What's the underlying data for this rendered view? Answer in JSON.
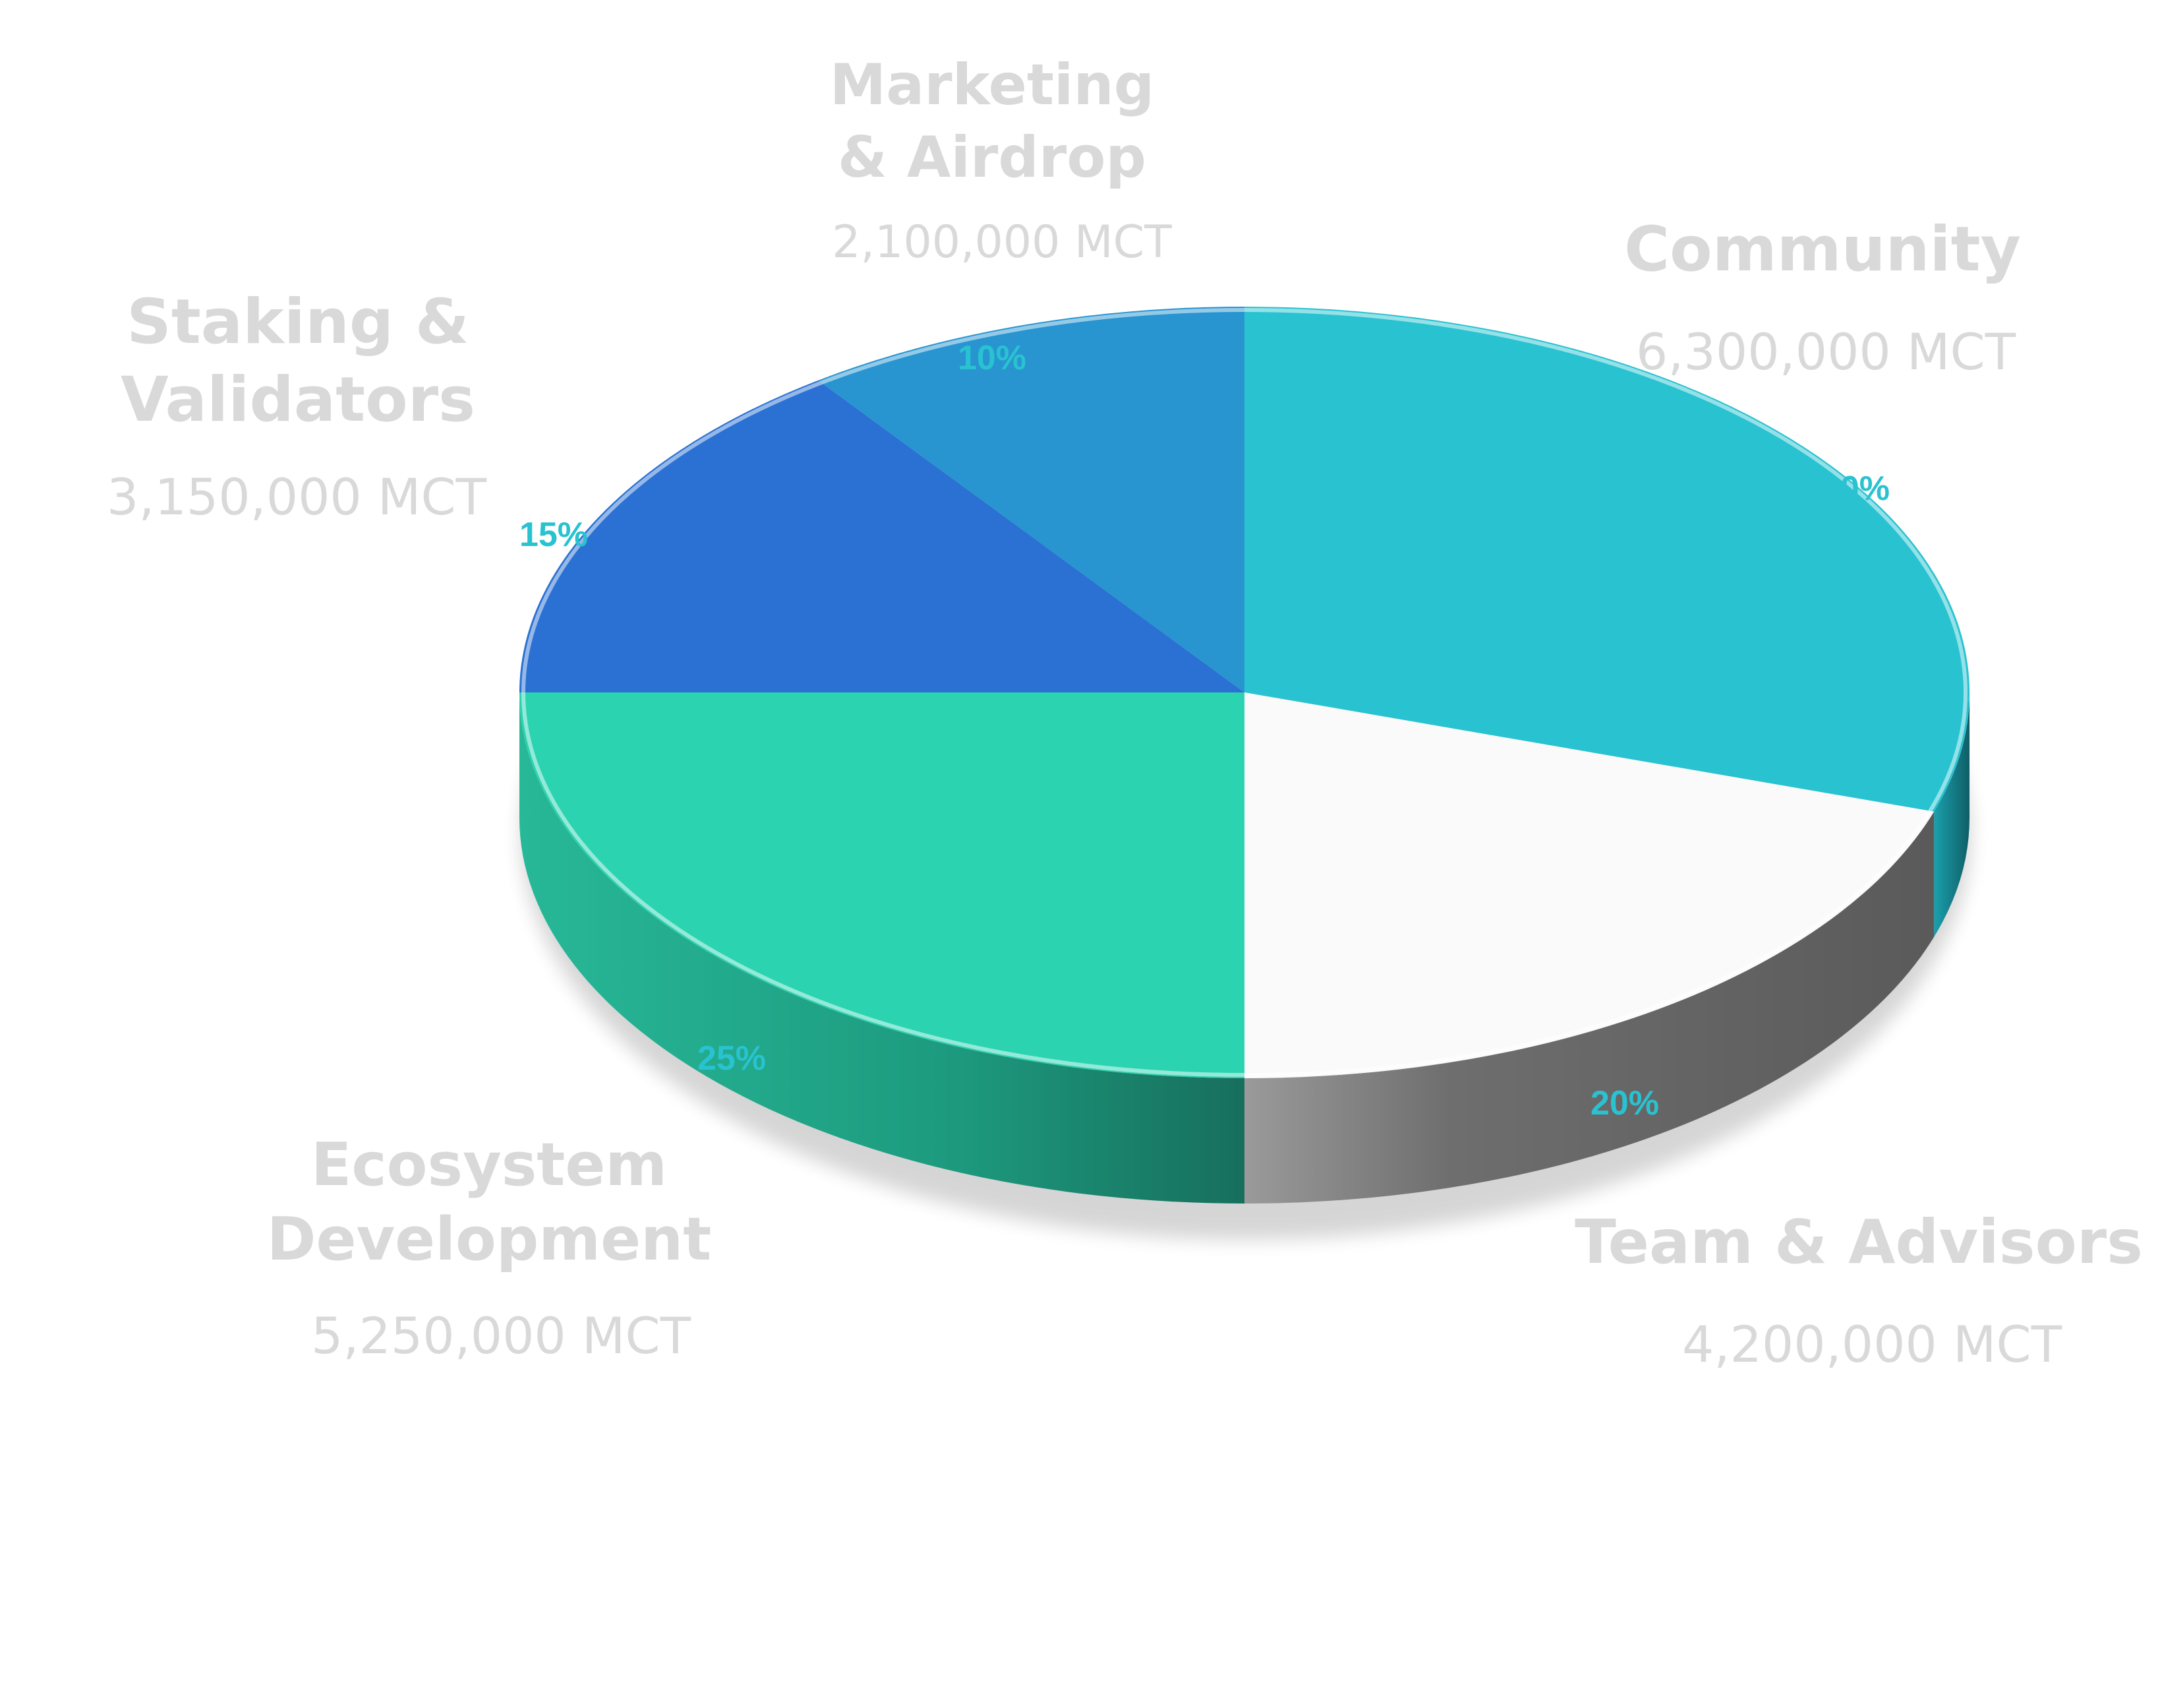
{
  "chart_data": {
    "type": "pie",
    "variant": "3d",
    "title": "",
    "slices": [
      {
        "name": "Community",
        "amount": "6,300,000 MCT",
        "value": 30,
        "percent_label": "30%",
        "color": "#29c2d1"
      },
      {
        "name": "Team & Advisors",
        "amount": "4,200,000 MCT",
        "value": 20,
        "percent_label": "20%",
        "color": "#fafafa"
      },
      {
        "name": "Ecosystem Development",
        "amount": "5,250,000 MCT",
        "value": 25,
        "percent_label": "25%",
        "color": "#2bd3b1"
      },
      {
        "name": "Staking & Validators",
        "amount": "3,150,000 MCT",
        "value": 15,
        "percent_label": "15%",
        "color": "#2a71d3"
      },
      {
        "name": "Marketing & Airdrop",
        "amount": "2,100,000 MCT",
        "value": 10,
        "percent_label": "10%",
        "color": "#2895d0"
      }
    ],
    "colors": {
      "label_text": "#d9d9d9",
      "percent_text": "#29c2d1",
      "community_side": "#1d8f9b",
      "team_side": "#6b6b6b",
      "ecosystem_side": "#1f9e83"
    }
  }
}
